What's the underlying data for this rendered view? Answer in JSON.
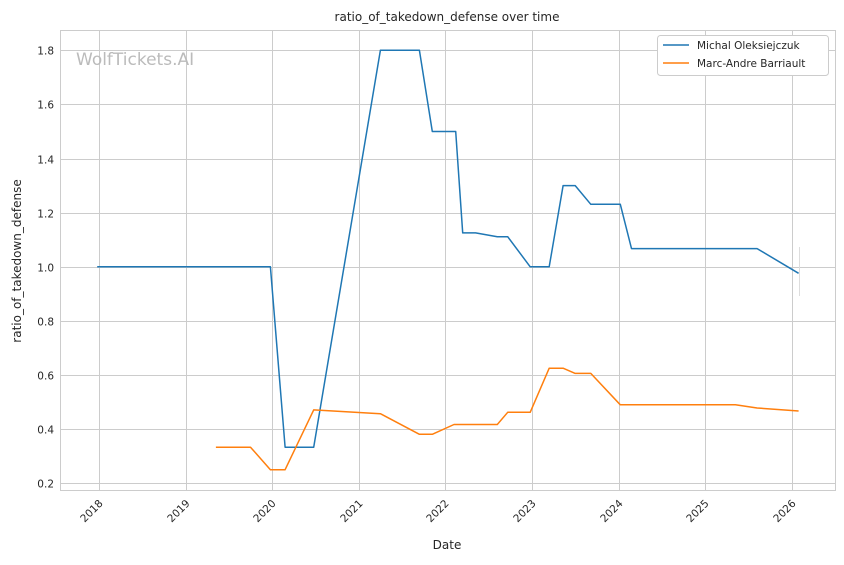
{
  "chart_data": {
    "type": "line",
    "title": "ratio_of_takedown_defense over time",
    "xlabel": "Date",
    "ylabel": "ratio_of_takedown_defense",
    "watermark": "WolfTickets.AI",
    "xlim": [
      2017.55,
      2026.5
    ],
    "ylim": [
      0.175,
      1.875
    ],
    "xticks": [
      2018,
      2019,
      2020,
      2021,
      2022,
      2023,
      2024,
      2025,
      2026
    ],
    "xtick_labels": [
      "2018",
      "2019",
      "2020",
      "2021",
      "2022",
      "2023",
      "2024",
      "2025",
      "2026"
    ],
    "yticks": [
      0.2,
      0.4,
      0.6,
      0.8,
      1.0,
      1.2,
      1.4,
      1.6,
      1.8
    ],
    "ytick_labels": [
      "0.2",
      "0.4",
      "0.6",
      "0.8",
      "1.0",
      "1.2",
      "1.4",
      "1.6",
      "1.8"
    ],
    "grid": true,
    "legend_position": "top-right",
    "series": [
      {
        "name": "Michal Oleksiejczuk",
        "color": "#1f77b4",
        "x": [
          2017.98,
          2019.98,
          2020.15,
          2020.48,
          2021.25,
          2021.7,
          2021.85,
          2022.12,
          2022.2,
          2022.35,
          2022.6,
          2022.72,
          2022.98,
          2023.2,
          2023.36,
          2023.5,
          2023.68,
          2024.02,
          2024.15,
          2025.6,
          2026.08
        ],
        "y": [
          1.0,
          1.0,
          0.333,
          0.333,
          1.8,
          1.8,
          1.5,
          1.5,
          1.125,
          1.125,
          1.111,
          1.111,
          1.0,
          1.0,
          1.3,
          1.3,
          1.231,
          1.231,
          1.067,
          1.067,
          0.976
        ]
      },
      {
        "name": "Marc-Andre Barriault",
        "color": "#ff7f0e",
        "x": [
          2019.35,
          2019.75,
          2019.98,
          2020.15,
          2020.48,
          2021.25,
          2021.7,
          2021.85,
          2022.1,
          2022.6,
          2022.72,
          2022.98,
          2023.2,
          2023.36,
          2023.5,
          2023.68,
          2024.02,
          2025.35,
          2025.6,
          2026.08
        ],
        "y": [
          0.333,
          0.333,
          0.25,
          0.25,
          0.471,
          0.457,
          0.381,
          0.381,
          0.417,
          0.417,
          0.462,
          0.462,
          0.625,
          0.625,
          0.606,
          0.606,
          0.49,
          0.49,
          0.478,
          0.467
        ]
      }
    ]
  }
}
